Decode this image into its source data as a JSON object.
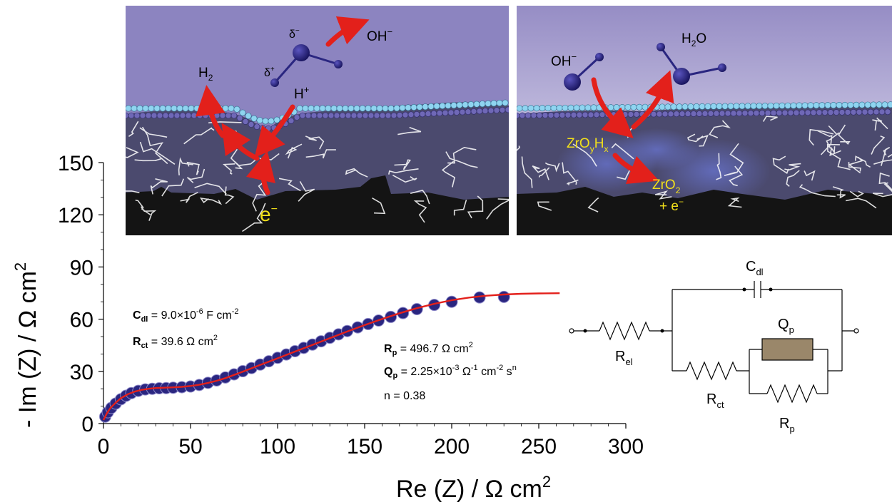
{
  "chart_data": {
    "type": "scatter",
    "xlabel": "Re (Z) / Ω cm",
    "xlabel_sup": "2",
    "ylabel": "- Im (Z) / Ω cm",
    "ylabel_sup": "2",
    "xlim": [
      0,
      300
    ],
    "ylim": [
      0,
      150
    ],
    "x_ticks": [
      0,
      50,
      100,
      150,
      200,
      250,
      300
    ],
    "y_ticks": [
      0,
      30,
      60,
      90,
      120,
      150
    ],
    "grid": false,
    "colors": {
      "points": "#2a2680",
      "fit": "#e3201b",
      "electrolyte": "#8c84c0",
      "metal": "#141414",
      "oxide": "#4b4a6e",
      "element_q": "#9a876a"
    },
    "series": [
      {
        "kind": "points",
        "x": [
          1.0,
          2.5,
          4.5,
          7.0,
          10.0,
          13.0,
          16.0,
          20.0,
          24.0,
          28.0,
          32.0,
          36.0,
          40.0,
          45.0,
          50.0,
          55.0,
          60.0,
          65.0,
          70.0,
          75.0,
          80.0,
          85.0,
          90.0,
          95.0,
          100.0,
          105.0,
          110.0,
          115.0,
          120.0,
          125.0,
          130.0,
          135.0,
          140.0,
          146.0,
          152.0,
          158.0,
          165.0,
          172.0,
          180.0,
          190.0,
          200.0,
          216.0,
          230.0
        ],
        "y": [
          4.0,
          6.5,
          9.0,
          11.5,
          14.0,
          16.0,
          17.5,
          18.8,
          19.6,
          20.0,
          20.3,
          20.4,
          20.6,
          20.9,
          21.3,
          22.2,
          23.4,
          24.8,
          26.5,
          28.3,
          30.1,
          31.9,
          33.9,
          35.8,
          37.8,
          39.7,
          41.6,
          43.5,
          45.4,
          47.3,
          49.3,
          51.3,
          53.2,
          55.3,
          57.2,
          59.2,
          61.3,
          63.5,
          65.8,
          68.2,
          70.0,
          72.5,
          72.8
        ]
      },
      {
        "kind": "fit",
        "x": [
          0.0,
          2.0,
          4.0,
          7.0,
          10.0,
          14.0,
          18.0,
          22.0,
          26.0,
          30.0,
          35.0,
          40.0,
          45.0,
          50.0,
          55.0,
          60.0,
          65.0,
          70.0,
          80.0,
          90.0,
          100.0,
          110.0,
          120.0,
          130.0,
          140.0,
          150.0,
          160.0,
          170.0,
          180.0,
          190.0,
          200.0,
          210.0,
          220.0,
          230.0,
          240.0,
          250.0,
          262.0
        ],
        "y": [
          2.0,
          6.0,
          9.0,
          12.0,
          14.6,
          16.9,
          18.4,
          19.4,
          20.0,
          20.4,
          20.6,
          20.8,
          21.1,
          21.6,
          22.3,
          23.3,
          24.6,
          26.1,
          29.8,
          33.7,
          37.5,
          41.4,
          45.2,
          49.1,
          52.9,
          56.6,
          60.1,
          63.4,
          66.3,
          68.8,
          70.9,
          72.4,
          73.5,
          74.2,
          74.6,
          74.8,
          74.9
        ]
      }
    ],
    "annotations": {
      "cdl": {
        "sym": "C",
        "sub": "dl",
        "eq": " = 9.0×10",
        "sup": "-6",
        "unit": " F cm",
        "unit_sup": "-2"
      },
      "rct": {
        "sym": "R",
        "sub": "ct",
        "eq": " = 39.6 Ω cm",
        "sup": "2"
      },
      "rp": {
        "sym": "R",
        "sub": "p",
        "eq": " = 496.7 Ω cm",
        "sup": "2"
      },
      "qp": {
        "sym": "Q",
        "sub": "p",
        "eq": " = 2.25×10",
        "sup": "-3",
        "u1": " Ω",
        "u1_sup": "-1",
        "u2": " cm",
        "u2_sup": "-2",
        "u3": " s",
        "u3_sup": "n"
      },
      "n": "n = 0.38"
    }
  },
  "circuit": {
    "cdl": {
      "sym": "C",
      "sub": "dl"
    },
    "rel": {
      "sym": "R",
      "sub": "el"
    },
    "qp": {
      "sym": "Q",
      "sub": "p"
    },
    "rct": {
      "sym": "R",
      "sub": "ct"
    },
    "rp": {
      "sym": "R",
      "sub": "p"
    }
  },
  "schematic_left": {
    "h2": {
      "sym": "H",
      "sub": "2"
    },
    "oh": {
      "sym": "OH",
      "sup": "−"
    },
    "delta_minus": {
      "sym": "δ",
      "sup": "−"
    },
    "delta_plus": {
      "sym": "δ",
      "sup": "+"
    },
    "h_plus": {
      "sym": "H",
      "sup": "+"
    },
    "electron": {
      "sym": "e",
      "sup": "−"
    }
  },
  "schematic_right": {
    "oh": {
      "sym": "OH",
      "sup": "−"
    },
    "h2o": {
      "sym": "H",
      "sub": "2",
      "rest": "O"
    },
    "zroh": {
      "a": "ZrO",
      "sub1": "y",
      "b": "H",
      "sub2": "x"
    },
    "zro2": {
      "a": "ZrO",
      "sub": "2"
    },
    "plus_e": {
      "a": "+ e",
      "sup": "−"
    }
  }
}
